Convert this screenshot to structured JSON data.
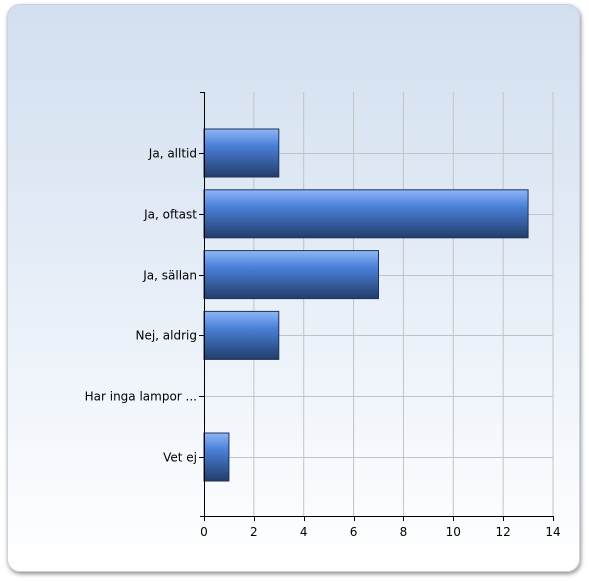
{
  "chart_data": {
    "type": "bar",
    "orientation": "horizontal",
    "categories": [
      "Ja, alltid",
      "Ja, oftast",
      "Ja, sällan",
      "Nej, aldrig",
      "Har inga lampor ...",
      "Vet ej"
    ],
    "values": [
      3,
      13,
      7,
      3,
      0,
      1
    ],
    "title": "",
    "xlabel": "",
    "ylabel": "",
    "xlim": [
      0,
      14
    ],
    "x_ticks": [
      0,
      2,
      4,
      6,
      8,
      10,
      12,
      14
    ],
    "x_tick_labels": [
      "0",
      "2",
      "4",
      "6",
      "8",
      "10",
      "12",
      "14"
    ],
    "grid": true,
    "legend": "none"
  },
  "colors": {
    "bar_top": "#8eb6f7",
    "bar_mid": "#4a80d8",
    "bar_bottom": "#223d6a",
    "grid": "#c3c3c3",
    "axis": "#000000"
  }
}
